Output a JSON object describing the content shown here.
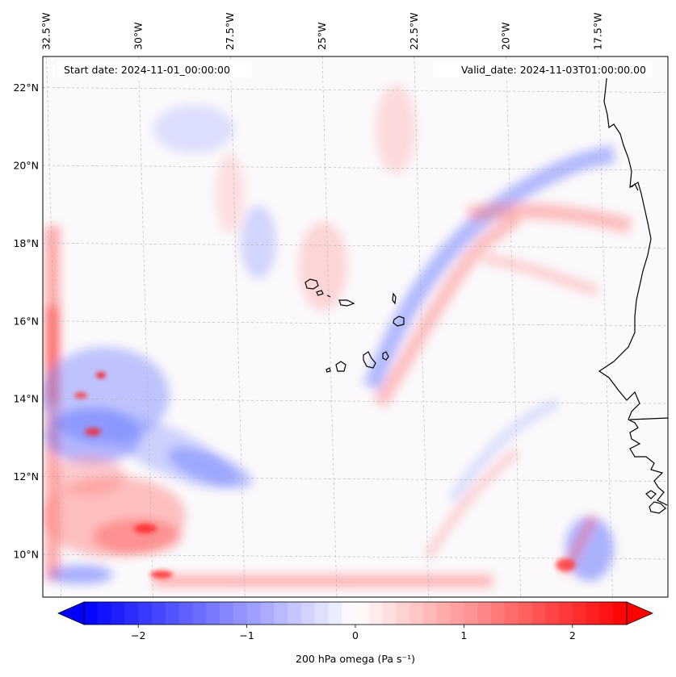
{
  "map": {
    "start_date": "Start date: 2024-11-01_00:00:00",
    "valid_date": "Valid_date: 2024-11-03T01:00:00.00",
    "lon_ticks": [
      {
        "value": -32.5,
        "label": "32.5°W"
      },
      {
        "value": -30,
        "label": "30°W"
      },
      {
        "value": -27.5,
        "label": "27.5°W"
      },
      {
        "value": -25,
        "label": "25°W"
      },
      {
        "value": -22.5,
        "label": "22.5°W"
      },
      {
        "value": -20,
        "label": "20°W"
      },
      {
        "value": -17.5,
        "label": "17.5°W"
      }
    ],
    "lat_ticks": [
      {
        "value": 22,
        "label": "22°N"
      },
      {
        "value": 20,
        "label": "20°N"
      },
      {
        "value": 18,
        "label": "18°N"
      },
      {
        "value": 16,
        "label": "16°N"
      },
      {
        "value": 14,
        "label": "14°N"
      },
      {
        "value": 12,
        "label": "12°N"
      },
      {
        "value": 10,
        "label": "10°N"
      }
    ],
    "extent": {
      "lon_min": -32.6,
      "lon_max": -15.6,
      "lat_min": 8.9,
      "lat_max": 22.8
    },
    "colors": {
      "min": "#0000ff",
      "mid": "#ffffff",
      "max": "#ff0000",
      "coast": "#000000",
      "grid": "#b0b0b0"
    }
  },
  "colorbar": {
    "label": "200 hPa omega (Pa s⁻¹)",
    "range": [
      -2.5,
      2.5
    ],
    "ticks": [
      {
        "value": -2,
        "label": "−2"
      },
      {
        "value": -1,
        "label": "−1"
      },
      {
        "value": 0,
        "label": "0"
      },
      {
        "value": 1,
        "label": "1"
      },
      {
        "value": 2,
        "label": "2"
      }
    ],
    "levels": 40,
    "extend": "both"
  }
}
